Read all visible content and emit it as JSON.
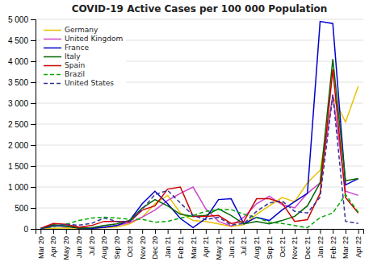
{
  "chart_data": {
    "type": "line",
    "title": "COVID-19 Active Cases per 100 000 Population",
    "categories": [
      "Mar 20",
      "Apr 20",
      "May 20",
      "Jun 20",
      "Jul 20",
      "Aug 20",
      "Sep 20",
      "Oct 20",
      "Nov 20",
      "Dec 20",
      "Jan 21",
      "Feb 21",
      "Mar 21",
      "Apr 21",
      "May 21",
      "Jun 21",
      "Jul 21",
      "Aug 21",
      "Sep 21",
      "Oct 21",
      "Nov 21",
      "Dec 21",
      "Jan 22",
      "Feb 22",
      "Mar 22",
      "Apr 22"
    ],
    "series": [
      {
        "name": "Germany",
        "color": "#e8c000",
        "line_style": "solid",
        "values": [
          3,
          15,
          25,
          15,
          10,
          30,
          50,
          120,
          280,
          600,
          800,
          380,
          200,
          180,
          120,
          60,
          100,
          350,
          550,
          750,
          650,
          1100,
          1400,
          3150,
          2550,
          3400
        ]
      },
      {
        "name": "United Kingdom",
        "color": "#cc44cc",
        "line_style": "solid",
        "values": [
          5,
          60,
          100,
          50,
          20,
          45,
          80,
          150,
          280,
          450,
          680,
          850,
          1000,
          480,
          180,
          70,
          280,
          600,
          780,
          580,
          500,
          850,
          1100,
          3200,
          900,
          800
        ]
      },
      {
        "name": "France",
        "color": "#0000cc",
        "line_style": "solid",
        "values": [
          5,
          80,
          60,
          20,
          10,
          40,
          80,
          200,
          600,
          900,
          600,
          250,
          30,
          250,
          700,
          720,
          120,
          280,
          200,
          450,
          650,
          850,
          4950,
          4900,
          1050,
          1200
        ]
      },
      {
        "name": "Italy",
        "color": "#006600",
        "line_style": "solid",
        "values": [
          5,
          100,
          70,
          20,
          30,
          80,
          120,
          200,
          500,
          700,
          550,
          350,
          300,
          320,
          480,
          320,
          120,
          180,
          120,
          200,
          300,
          550,
          1100,
          4050,
          1150,
          1200
        ]
      },
      {
        "name": "Spain",
        "color": "#cc0000",
        "line_style": "solid",
        "values": [
          15,
          130,
          110,
          40,
          80,
          180,
          180,
          170,
          450,
          550,
          950,
          1000,
          300,
          300,
          320,
          130,
          180,
          720,
          720,
          620,
          180,
          220,
          850,
          3800,
          750,
          380
        ]
      },
      {
        "name": "Brazil",
        "color": "#00aa00",
        "line_style": "dashed",
        "values": [
          3,
          50,
          110,
          200,
          260,
          280,
          260,
          230,
          230,
          160,
          180,
          260,
          320,
          420,
          460,
          460,
          350,
          270,
          160,
          130,
          80,
          30,
          270,
          380,
          820,
          400
        ]
      },
      {
        "name": "United States",
        "color": "#333399",
        "line_style": "dashed",
        "values": [
          3,
          70,
          110,
          90,
          130,
          260,
          180,
          180,
          470,
          820,
          920,
          620,
          320,
          220,
          280,
          90,
          130,
          420,
          620,
          670,
          420,
          380,
          760,
          3200,
          180,
          130
        ]
      }
    ],
    "ylim": [
      0,
      5000
    ],
    "yticks": [
      0,
      500,
      {
        "value": 1000,
        "label": "1 000"
      },
      {
        "value": 1500,
        "label": "1 500"
      },
      {
        "value": 2000,
        "label": "2 000"
      },
      {
        "value": 2500,
        "label": "2 500"
      },
      {
        "value": 3000,
        "label": "3 000"
      },
      {
        "value": 3500,
        "label": "3 500"
      },
      {
        "value": 4000,
        "label": "4 000"
      },
      {
        "value": 4500,
        "label": "4 500"
      },
      {
        "value": 5000,
        "label": "5 000"
      }
    ],
    "grid": true,
    "legend": "upper left"
  }
}
